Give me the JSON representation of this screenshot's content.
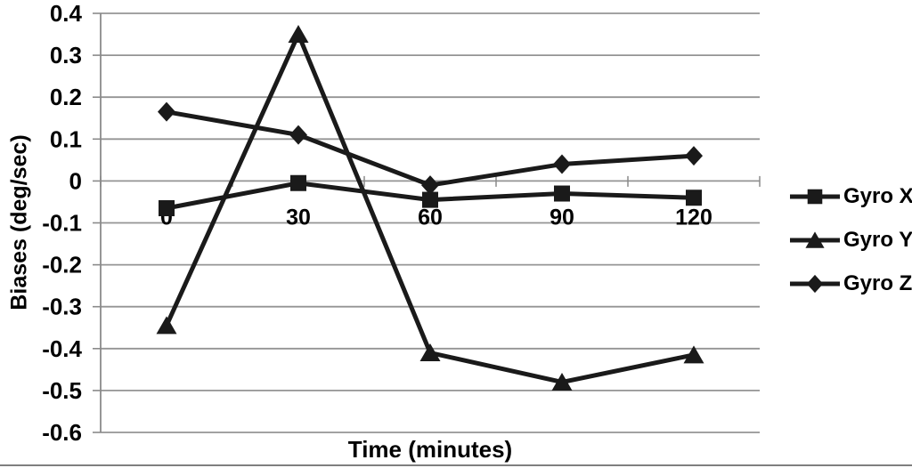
{
  "figure": {
    "bottom_border_color": "#7f7f7f",
    "background_color": "#ffffff"
  },
  "chart_data": {
    "type": "line",
    "title": "",
    "xlabel": "Time (minutes)",
    "ylabel": "Biases (deg/sec)",
    "categories": [
      0,
      30,
      60,
      90,
      120
    ],
    "xtick_labels": [
      "0",
      "30",
      "60",
      "90",
      "120"
    ],
    "series": [
      {
        "name": "Gyro X",
        "marker": "square",
        "values": [
          -0.065,
          -0.005,
          -0.045,
          -0.03,
          -0.04
        ]
      },
      {
        "name": "Gyro Y",
        "marker": "triangle",
        "values": [
          -0.345,
          0.35,
          -0.41,
          -0.48,
          -0.415
        ]
      },
      {
        "name": "Gyro Z",
        "marker": "diamond",
        "values": [
          0.165,
          0.11,
          -0.01,
          0.04,
          0.06
        ]
      }
    ],
    "ylim": [
      -0.6,
      0.4
    ],
    "ytick_step": 0.1,
    "ytick_labels": [
      "0.4",
      "0.3",
      "0.2",
      "0.1",
      "0",
      "-0.1",
      "-0.2",
      "-0.3",
      "-0.4",
      "-0.5",
      "-0.6"
    ],
    "grid": true,
    "legend_position": "right",
    "series_color": "#1a1a1a",
    "grid_color": "#949494",
    "axis_color": "#8a8a8a",
    "text_color": "#000000"
  }
}
